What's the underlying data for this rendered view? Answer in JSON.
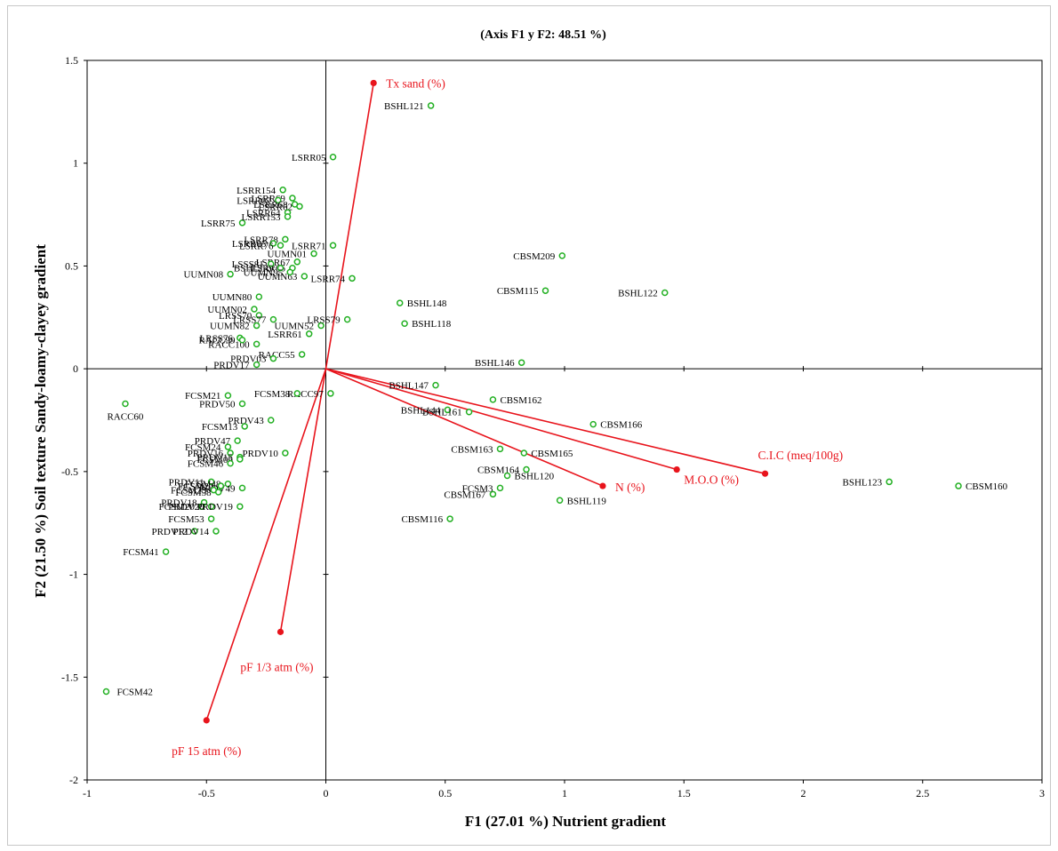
{
  "chart_data": {
    "type": "scatter",
    "title": "(Axis F1 y F2: 48.51 %)",
    "xlabel": "F1 (27.01 %) Nutrient gradient",
    "ylabel": "F2 (21.50 %) Soil texture Sandy-loamy-clayey gradient",
    "xlim": [
      -1,
      3
    ],
    "ylim": [
      -2,
      1.5
    ],
    "x_ticks": [
      "-1",
      "-0.5",
      "0",
      "0.5",
      "1",
      "1.5",
      "2",
      "2.5",
      "3"
    ],
    "y_ticks": [
      "1.5",
      "1",
      "0.5",
      "0",
      "-0.5",
      "-1",
      "-1.5",
      "-2"
    ],
    "colors": {
      "observations": "#22b022",
      "variables": "#e8141c",
      "axes": "#000000"
    },
    "variables": [
      {
        "name": "Tx sand (%)",
        "x": 0.2,
        "y": 1.39
      },
      {
        "name": "C.I.C (meq/100g)",
        "x": 1.84,
        "y": -0.51
      },
      {
        "name": "M.O.O (%)",
        "x": 1.47,
        "y": -0.49
      },
      {
        "name": "N (%)",
        "x": 1.16,
        "y": -0.57
      },
      {
        "name": "pF 1/3 atm (%)",
        "x": -0.19,
        "y": -1.28
      },
      {
        "name": "pF 15 atm (%)",
        "x": -0.5,
        "y": -1.71
      }
    ],
    "observations": [
      {
        "name": "BSHL121",
        "x": 0.44,
        "y": 1.28
      },
      {
        "name": "LSRR05",
        "x": 0.03,
        "y": 1.03
      },
      {
        "name": "LSRR154",
        "x": -0.18,
        "y": 0.87
      },
      {
        "name": "LSRR69",
        "x": -0.14,
        "y": 0.83
      },
      {
        "name": "LSRR07",
        "x": -0.2,
        "y": 0.82
      },
      {
        "name": "LSRR68",
        "x": -0.13,
        "y": 0.8
      },
      {
        "name": "LSRR62",
        "x": -0.11,
        "y": 0.79
      },
      {
        "name": "LSRR64",
        "x": -0.16,
        "y": 0.76
      },
      {
        "name": "LSRR75",
        "x": -0.35,
        "y": 0.71
      },
      {
        "name": "LSRR153",
        "x": -0.16,
        "y": 0.74
      },
      {
        "name": "LSRR78",
        "x": -0.17,
        "y": 0.63
      },
      {
        "name": "LSRR65",
        "x": -0.22,
        "y": 0.61
      },
      {
        "name": "LSRR76",
        "x": -0.19,
        "y": 0.6
      },
      {
        "name": "LSRR71",
        "x": 0.03,
        "y": 0.6
      },
      {
        "name": "UUMN01",
        "x": -0.05,
        "y": 0.56
      },
      {
        "name": "LSRR67",
        "x": -0.12,
        "y": 0.52
      },
      {
        "name": "LSRR66",
        "x": -0.14,
        "y": 0.49
      },
      {
        "name": "LSSS81",
        "x": -0.23,
        "y": 0.51
      },
      {
        "name": "BSHL149",
        "x": -0.19,
        "y": 0.49
      },
      {
        "name": "UUMN08",
        "x": -0.4,
        "y": 0.46
      },
      {
        "name": "UUMN63",
        "x": -0.09,
        "y": 0.45
      },
      {
        "name": "UUMN95",
        "x": -0.15,
        "y": 0.47
      },
      {
        "name": "LSRR74",
        "x": 0.11,
        "y": 0.44
      },
      {
        "name": "CBSM209",
        "x": 0.99,
        "y": 0.55
      },
      {
        "name": "CBSM115",
        "x": 0.92,
        "y": 0.38
      },
      {
        "name": "BSHL122",
        "x": 1.42,
        "y": 0.37
      },
      {
        "name": "BSHL148",
        "x": 0.31,
        "y": 0.32
      },
      {
        "name": "UUMN80",
        "x": -0.28,
        "y": 0.35
      },
      {
        "name": "UUMN02",
        "x": -0.3,
        "y": 0.29
      },
      {
        "name": "LRSS70",
        "x": -0.28,
        "y": 0.26
      },
      {
        "name": "LRSS77",
        "x": -0.22,
        "y": 0.24
      },
      {
        "name": "UUMN52",
        "x": -0.02,
        "y": 0.21
      },
      {
        "name": "UUMN82",
        "x": -0.29,
        "y": 0.21
      },
      {
        "name": "LRSS79",
        "x": 0.09,
        "y": 0.24
      },
      {
        "name": "BSHL118",
        "x": 0.33,
        "y": 0.22
      },
      {
        "name": "LSRR61",
        "x": -0.07,
        "y": 0.17
      },
      {
        "name": "LRSS76",
        "x": -0.36,
        "y": 0.15
      },
      {
        "name": "RACC100",
        "x": -0.29,
        "y": 0.12
      },
      {
        "name": "RACC99",
        "x": -0.35,
        "y": 0.14
      },
      {
        "name": "RACC55",
        "x": -0.1,
        "y": 0.07
      },
      {
        "name": "PRDV03",
        "x": -0.22,
        "y": 0.05
      },
      {
        "name": "PRDV17",
        "x": -0.29,
        "y": 0.02
      },
      {
        "name": "BSHL146",
        "x": 0.82,
        "y": 0.03
      },
      {
        "name": "BSHL147",
        "x": 0.46,
        "y": -0.08
      },
      {
        "name": "CBSM162",
        "x": 0.7,
        "y": -0.15
      },
      {
        "name": "RACC97",
        "x": 0.02,
        "y": -0.12
      },
      {
        "name": "FCSM38",
        "x": -0.12,
        "y": -0.12
      },
      {
        "name": "FCSM21",
        "x": -0.41,
        "y": -0.13
      },
      {
        "name": "PRDV50",
        "x": -0.35,
        "y": -0.17
      },
      {
        "name": "RACC60",
        "x": -0.84,
        "y": -0.17
      },
      {
        "name": "BSHL144",
        "x": 0.51,
        "y": -0.2
      },
      {
        "name": "BSHL161",
        "x": 0.6,
        "y": -0.21
      },
      {
        "name": "CBSM166",
        "x": 1.12,
        "y": -0.27
      },
      {
        "name": "PRDV43",
        "x": -0.23,
        "y": -0.25
      },
      {
        "name": "FCSM13",
        "x": -0.34,
        "y": -0.28
      },
      {
        "name": "CBSM163",
        "x": 0.73,
        "y": -0.39
      },
      {
        "name": "CBSM165",
        "x": 0.83,
        "y": -0.41
      },
      {
        "name": "PRDV47",
        "x": -0.37,
        "y": -0.35
      },
      {
        "name": "FCSM24",
        "x": -0.41,
        "y": -0.38
      },
      {
        "name": "PRDV10",
        "x": -0.17,
        "y": -0.41
      },
      {
        "name": "PRDV16",
        "x": -0.4,
        "y": -0.41
      },
      {
        "name": "PRDV15",
        "x": -0.36,
        "y": -0.43
      },
      {
        "name": "FCSM06",
        "x": -0.36,
        "y": -0.44
      },
      {
        "name": "FCSM46",
        "x": -0.4,
        "y": -0.46
      },
      {
        "name": "CBSM164",
        "x": 0.84,
        "y": -0.49
      },
      {
        "name": "BSHL120",
        "x": 0.76,
        "y": -0.52
      },
      {
        "name": "PRDV11",
        "x": -0.48,
        "y": -0.55
      },
      {
        "name": "FCSM48",
        "x": -0.41,
        "y": -0.56
      },
      {
        "name": "PRDV49",
        "x": -0.35,
        "y": -0.58
      },
      {
        "name": "FCSM22",
        "x": -0.44,
        "y": -0.57
      },
      {
        "name": "FCSM23",
        "x": -0.47,
        "y": -0.59
      },
      {
        "name": "FCSM58",
        "x": -0.45,
        "y": -0.6
      },
      {
        "name": "FCSM3",
        "x": 0.73,
        "y": -0.58
      },
      {
        "name": "CBSM167",
        "x": 0.7,
        "y": -0.61
      },
      {
        "name": "BSHL119",
        "x": 0.98,
        "y": -0.64
      },
      {
        "name": "PRDV18",
        "x": -0.51,
        "y": -0.65
      },
      {
        "name": "FCSM20",
        "x": -0.52,
        "y": -0.67
      },
      {
        "name": "PRDV20",
        "x": -0.48,
        "y": -0.67
      },
      {
        "name": "PRDV19",
        "x": -0.36,
        "y": -0.67
      },
      {
        "name": "FCSM53",
        "x": -0.48,
        "y": -0.73
      },
      {
        "name": "CBSM116",
        "x": 0.52,
        "y": -0.73
      },
      {
        "name": "PRDV12",
        "x": -0.55,
        "y": -0.79
      },
      {
        "name": "PRDV14",
        "x": -0.46,
        "y": -0.79
      },
      {
        "name": "FCSM41",
        "x": -0.67,
        "y": -0.89
      },
      {
        "name": "BSHL123",
        "x": 2.36,
        "y": -0.55
      },
      {
        "name": "CBSM160",
        "x": 2.65,
        "y": -0.57
      },
      {
        "name": "FCSM42",
        "x": -0.92,
        "y": -1.57
      }
    ]
  }
}
